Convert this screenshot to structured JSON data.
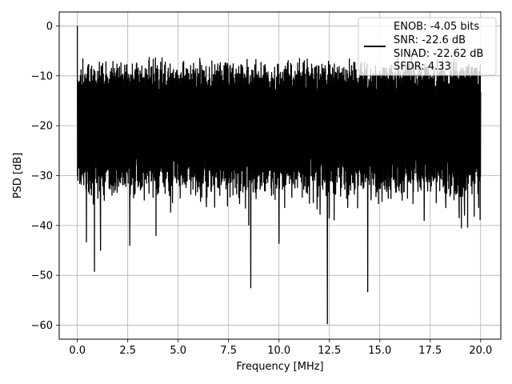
{
  "chart_data": {
    "type": "line",
    "title": "",
    "xlabel": "Frequency [MHz]",
    "ylabel": "PSD [dB]",
    "xlim": [
      -0.9,
      21.0
    ],
    "ylim": [
      -62.8,
      2.8
    ],
    "xticks": [
      0.0,
      2.5,
      5.0,
      7.5,
      10.0,
      12.5,
      15.0,
      17.5,
      20.0
    ],
    "xtick_labels": [
      "0.0",
      "2.5",
      "5.0",
      "7.5",
      "10.0",
      "12.5",
      "15.0",
      "17.5",
      "20.0"
    ],
    "yticks": [
      0,
      -10,
      -20,
      -30,
      -40,
      -50,
      -60
    ],
    "ytick_labels": [
      "0",
      "−10",
      "−20",
      "−30",
      "−40",
      "−50",
      "−60"
    ],
    "grid": true,
    "legend_position": "top-right",
    "series": [
      {
        "color": "#000000",
        "x_range": [
          0.0,
          20.0
        ],
        "peak": {
          "x": 0.0,
          "y": 0.0
        },
        "typical_upper_envelope": -8,
        "typical_lower_envelope": -32,
        "notable_minima": [
          {
            "x": 0.45,
            "y": -43.3
          },
          {
            "x": 0.85,
            "y": -49.2
          },
          {
            "x": 1.15,
            "y": -45.0
          },
          {
            "x": 2.6,
            "y": -44.0
          },
          {
            "x": 3.9,
            "y": -42.0
          },
          {
            "x": 8.6,
            "y": -52.5
          },
          {
            "x": 10.0,
            "y": -43.6
          },
          {
            "x": 12.4,
            "y": -59.7
          },
          {
            "x": 14.4,
            "y": -53.3
          },
          {
            "x": 17.2,
            "y": -39.0
          },
          {
            "x": 19.9,
            "y": -36.4
          }
        ]
      }
    ],
    "legend_lines": [
      "ENOB: -4.05 bits",
      "SNR: -22.6 dB",
      "SINAD: -22.62 dB",
      "SFDR: 4.33"
    ]
  }
}
